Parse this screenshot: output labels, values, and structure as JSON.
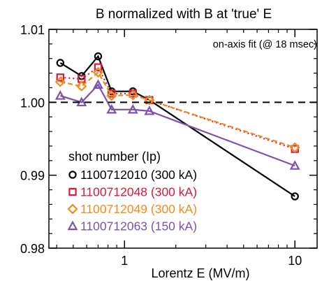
{
  "chart_data": {
    "type": "line",
    "title": "B normalized with B at 'true' E",
    "annotation": "on-axis fit (@ 18 msec)",
    "xlabel": "Lorentz E (MV/m)",
    "ylabel": "",
    "xscale": "log",
    "xlim": [
      0.36,
      13.5
    ],
    "ylim": [
      0.98,
      1.01
    ],
    "x_ticks": [
      1,
      10
    ],
    "x_tick_labels": [
      "1",
      "10"
    ],
    "y_ticks": [
      0.98,
      0.99,
      1.0,
      1.01
    ],
    "y_tick_labels": [
      "0.98",
      "0.99",
      "1.00",
      "1.01"
    ],
    "reference_line": {
      "y": 1.0,
      "style": "dashed",
      "color": "#000000"
    },
    "legend_title": "shot number (Ip)",
    "legend_position": "bottom-left",
    "x": [
      0.42,
      0.56,
      0.7,
      0.84,
      1.12,
      1.4,
      10.0
    ],
    "series": [
      {
        "name": "1100712010 (300 kA)",
        "color": "#000000",
        "marker": "circle",
        "line": "solid",
        "values": [
          1.0054,
          1.0036,
          1.0063,
          1.0015,
          1.0015,
          1.0003,
          0.9871
        ]
      },
      {
        "name": "1100712048 (300 kA)",
        "color": "#d7193c",
        "marker": "square",
        "line": "dotted",
        "values": [
          1.0034,
          1.0032,
          1.0048,
          1.0012,
          1.0012,
          1.0003,
          0.9936
        ]
      },
      {
        "name": "1100712049 (300 kA)",
        "color": "#f08c1e",
        "marker": "diamond",
        "line": "dashed",
        "values": [
          1.0028,
          1.0022,
          1.0041,
          1.0009,
          1.001,
          1.0003,
          0.9938
        ]
      },
      {
        "name": "1100712063 (150 kA)",
        "color": "#7e52a8",
        "marker": "triangle",
        "line": "solid",
        "values": [
          1.0009,
          1.0,
          1.0024,
          0.999,
          0.999,
          0.9988,
          0.9913
        ]
      }
    ]
  }
}
